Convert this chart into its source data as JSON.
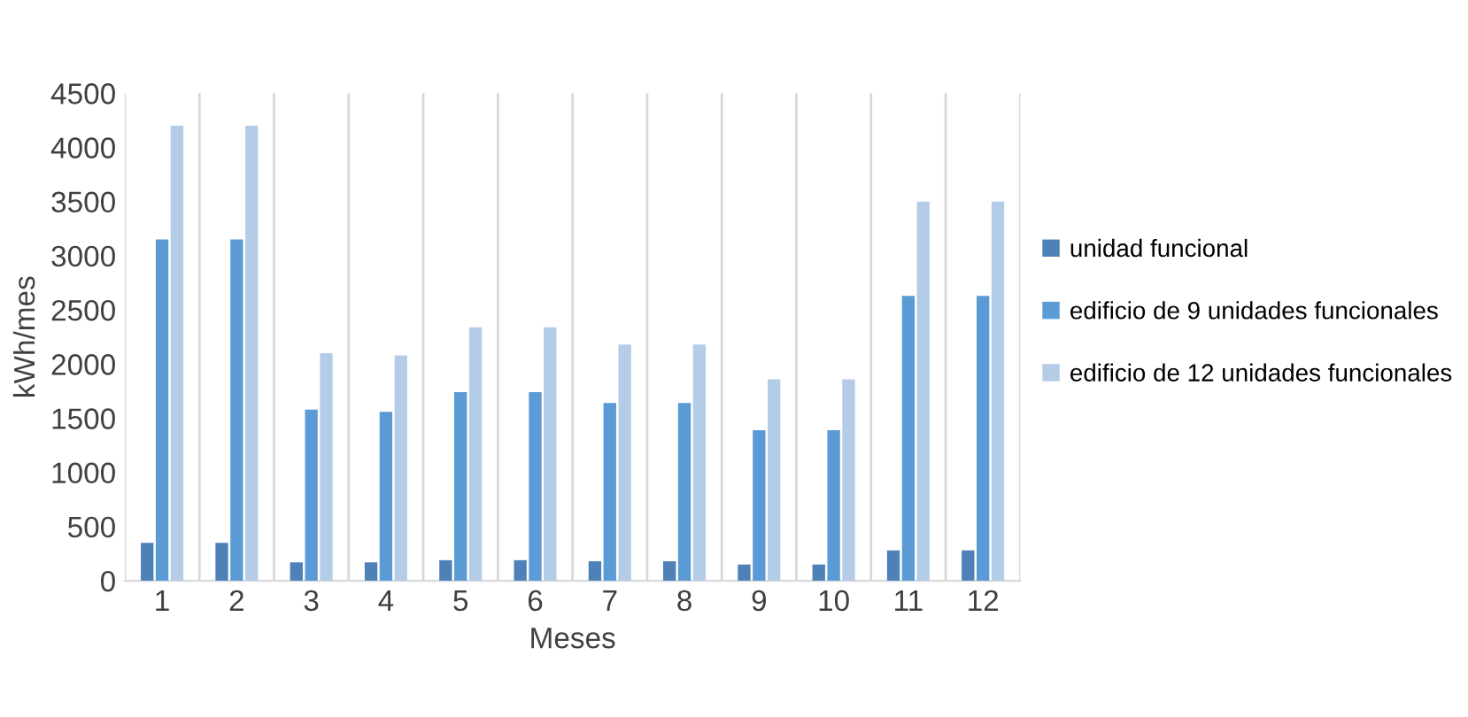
{
  "chart_data": {
    "type": "bar",
    "xlabel": "Meses",
    "ylabel": "kWh/mes",
    "categories": [
      "1",
      "2",
      "3",
      "4",
      "5",
      "6",
      "7",
      "8",
      "9",
      "10",
      "11",
      "12"
    ],
    "series": [
      {
        "name": "unidad funcional",
        "color": "#4f81b9",
        "values": [
          350,
          350,
          170,
          170,
          190,
          190,
          180,
          180,
          150,
          150,
          280,
          280
        ]
      },
      {
        "name": "edificio de 9 unidades funcionales",
        "color": "#5b9bd5",
        "values": [
          3150,
          3150,
          1580,
          1560,
          1740,
          1740,
          1640,
          1640,
          1390,
          1390,
          2630,
          2630
        ]
      },
      {
        "name": "edificio de 12 unidades funcionales",
        "color": "#b4cce8",
        "values": [
          4200,
          4200,
          2100,
          2080,
          2340,
          2340,
          2180,
          2180,
          1860,
          1860,
          3500,
          3500
        ]
      }
    ],
    "ylim": [
      0,
      4500
    ],
    "yticks": [
      0,
      500,
      1000,
      1500,
      2000,
      2500,
      3000,
      3500,
      4000,
      4500
    ],
    "grid": "x",
    "legend": "right"
  }
}
